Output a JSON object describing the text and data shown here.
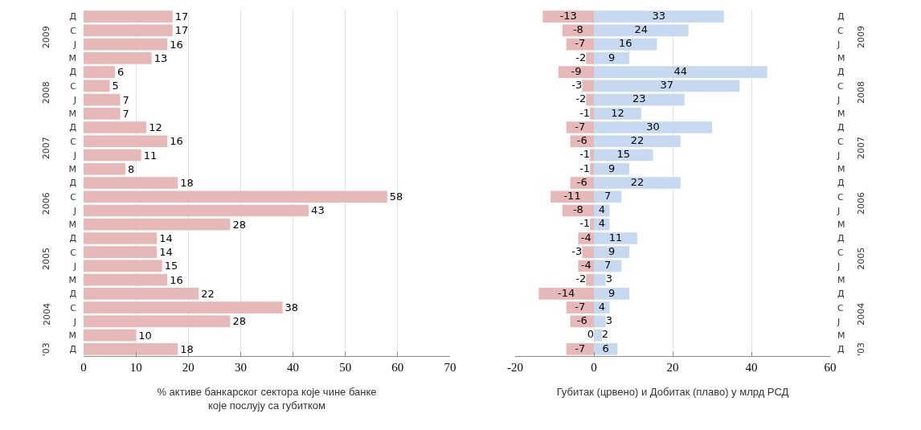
{
  "chart_data": [
    {
      "type": "bar",
      "orientation": "horizontal",
      "categories": [
        "Д",
        "С",
        "Ј",
        "М",
        "Д",
        "С",
        "Ј",
        "М",
        "Д",
        "С",
        "Ј",
        "М",
        "Д",
        "С",
        "Ј",
        "М",
        "Д",
        "С",
        "Ј",
        "М",
        "Д",
        "С",
        "Ј",
        "М",
        "Д"
      ],
      "series": [
        {
          "color": "#e6b9b8",
          "values": [
            17,
            17,
            16,
            13,
            6,
            5,
            7,
            7,
            12,
            16,
            11,
            8,
            18,
            58,
            43,
            28,
            14,
            14,
            15,
            16,
            22,
            38,
            28,
            10,
            18
          ]
        }
      ],
      "xlim": [
        0,
        70
      ],
      "xticks": [
        0,
        10,
        20,
        30,
        40,
        50,
        60,
        70
      ],
      "grid": "x",
      "data_labels": true,
      "xlabel": "% активе банкарског сектора које чине банке које послују са губитком",
      "annotations": [
        "2009",
        "2008",
        "2007",
        "2006",
        "2005",
        "2004",
        "'03"
      ]
    },
    {
      "type": "bar",
      "orientation": "horizontal",
      "stacked": true,
      "categories": [
        "Д",
        "С",
        "Ј",
        "М",
        "Д",
        "С",
        "Ј",
        "М",
        "Д",
        "С",
        "Ј",
        "М",
        "Д",
        "С",
        "Ј",
        "М",
        "Д",
        "С",
        "Ј",
        "М",
        "Д",
        "С",
        "Ј",
        "М",
        "Д"
      ],
      "series": [
        {
          "color": "#e6b9b8",
          "values": [
            -13,
            -8,
            -7,
            -2,
            -9,
            -3,
            -2,
            -1,
            -7,
            -6,
            -1,
            -1,
            -6,
            -11,
            -8,
            -1,
            -4,
            -3,
            -4,
            -2,
            -14,
            -7,
            -6,
            0,
            -7
          ]
        },
        {
          "color": "#c6d9f1",
          "values": [
            33,
            24,
            16,
            9,
            44,
            37,
            23,
            12,
            30,
            22,
            15,
            9,
            22,
            7,
            4,
            4,
            11,
            9,
            7,
            3,
            9,
            4,
            3,
            2,
            6
          ]
        }
      ],
      "xlim": [
        -20,
        60
      ],
      "xticks": [
        -20,
        0,
        20,
        40,
        60
      ],
      "grid": "x",
      "data_labels": true,
      "xlabel": "Губитак (црвено) и Добитак (плаво) у млрд РСД",
      "annotations": [
        "2009",
        "2008",
        "2007",
        "2006",
        "2005",
        "2004",
        "'03"
      ]
    }
  ]
}
